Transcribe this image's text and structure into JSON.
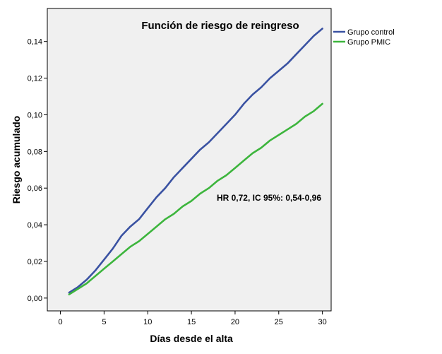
{
  "chart_data": {
    "type": "line",
    "title": "Función de riesgo de reingreso",
    "xlabel": "Días desde el alta",
    "ylabel": "Riesgo acumulado",
    "xlim": [
      -1.5,
      31
    ],
    "ylim": [
      -0.007,
      0.158
    ],
    "xticks": [
      0,
      5,
      10,
      15,
      20,
      25,
      30
    ],
    "xtick_labels": [
      "0",
      "5",
      "10",
      "15",
      "20",
      "25",
      "30"
    ],
    "yticks": [
      0,
      0.02,
      0.04,
      0.06,
      0.08,
      0.1,
      0.12,
      0.14
    ],
    "ytick_labels": [
      "0,00",
      "0,02",
      "0,04",
      "0,06",
      "0,08",
      "0,10",
      "0,12",
      "0,14"
    ],
    "grid": false,
    "legend_position": "outside-top-right",
    "annotation": "HR 0,72, IC 95%: 0,54-0,96",
    "background_color": "#f0f0f0",
    "series": [
      {
        "name": "Grupo control",
        "color": "#3a52a2",
        "x": [
          1,
          2,
          3,
          4,
          5,
          6,
          7,
          8,
          9,
          10,
          11,
          12,
          13,
          14,
          15,
          16,
          17,
          18,
          19,
          20,
          21,
          22,
          23,
          24,
          25,
          26,
          27,
          28,
          29,
          30
        ],
        "values": [
          0.003,
          0.006,
          0.01,
          0.015,
          0.021,
          0.027,
          0.034,
          0.039,
          0.043,
          0.049,
          0.055,
          0.06,
          0.066,
          0.071,
          0.076,
          0.081,
          0.085,
          0.09,
          0.095,
          0.1,
          0.106,
          0.111,
          0.115,
          0.12,
          0.124,
          0.128,
          0.133,
          0.138,
          0.143,
          0.147
        ]
      },
      {
        "name": "Grupo PMIC",
        "color": "#3db53d",
        "x": [
          1,
          2,
          3,
          4,
          5,
          6,
          7,
          8,
          9,
          10,
          11,
          12,
          13,
          14,
          15,
          16,
          17,
          18,
          19,
          20,
          21,
          22,
          23,
          24,
          25,
          26,
          27,
          28,
          29,
          30
        ],
        "values": [
          0.002,
          0.005,
          0.008,
          0.012,
          0.016,
          0.02,
          0.024,
          0.028,
          0.031,
          0.035,
          0.039,
          0.043,
          0.046,
          0.05,
          0.053,
          0.057,
          0.06,
          0.064,
          0.067,
          0.071,
          0.075,
          0.079,
          0.082,
          0.086,
          0.089,
          0.092,
          0.095,
          0.099,
          0.102,
          0.106
        ]
      }
    ]
  }
}
